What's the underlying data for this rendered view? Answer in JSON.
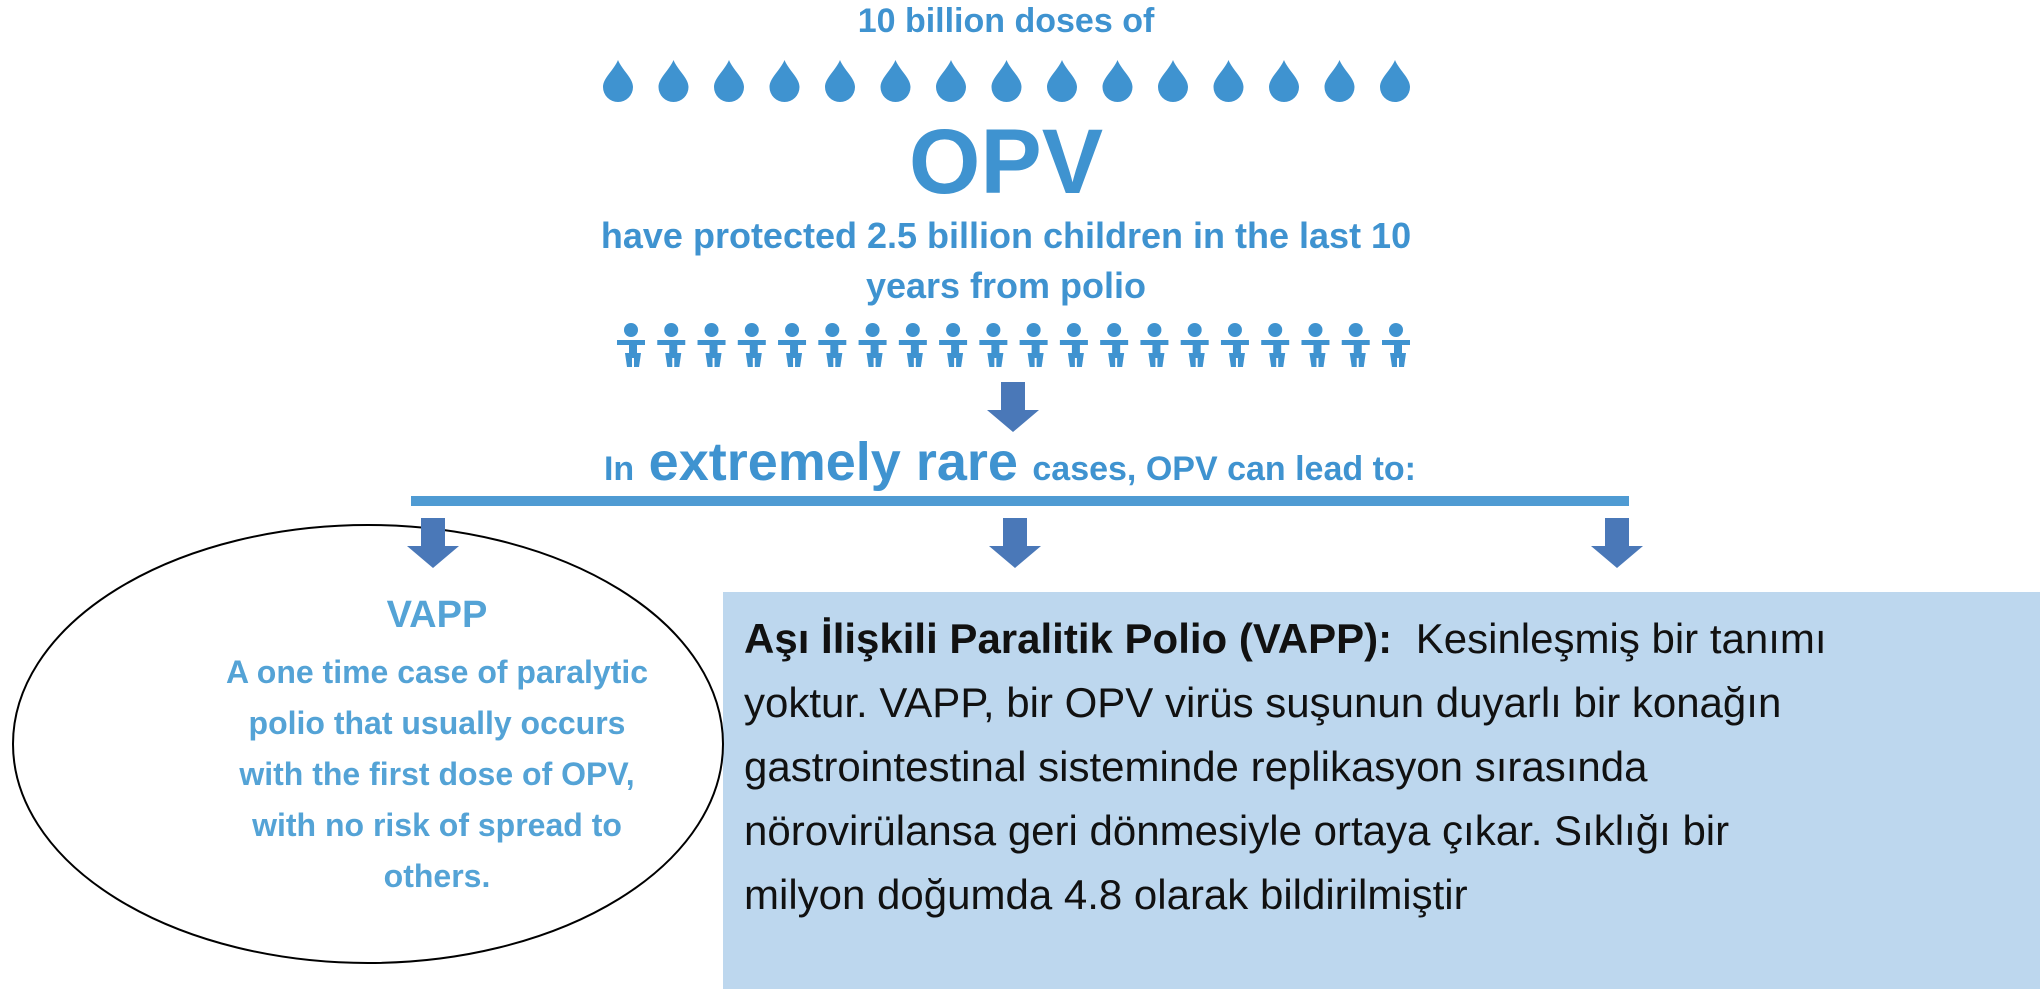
{
  "header": {
    "doses": "10 billion doses of",
    "vaccine": "OPV",
    "protected_lines": [
      "have protected 2.5 billion children in the last 10",
      "years from polio"
    ]
  },
  "lead": {
    "before": "In",
    "emphasis": "extremely rare",
    "after": "cases, OPV can lead to:"
  },
  "vapp": {
    "title": "VAPP",
    "lines": [
      "A one time case of paralytic",
      "polio  that usually occurs",
      "with the first dose of OPV,",
      "with no risk of spread to",
      "others."
    ]
  },
  "note": {
    "title": "Aşı İlişkili Paralitik Polio (VAPP):",
    "lines": [
      "Kesinleşmiş bir tanımı",
      "yoktur. VAPP, bir OPV virüs suşunun duyarlı bir konağın",
      "gastrointestinal sisteminde replikasyon sırasında",
      "nörovirülansa geri dönmesiyle ortaya çıkar. Sıklığı bir",
      "milyon doğumda 4.8 olarak bildirilmiştir"
    ]
  }
}
